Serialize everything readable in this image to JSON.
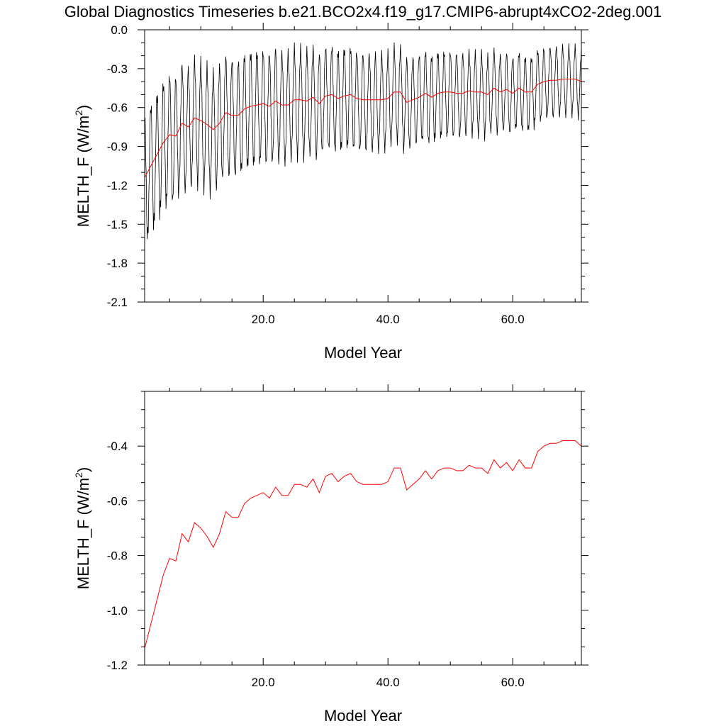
{
  "title": "Global Diagnostics Timeseries b.e21.BCO2x4.f19_g17.CMIP6-abrupt4xCO2-2deg.001",
  "colors": {
    "monthly": "#000000",
    "annual": "#ff0000",
    "axes": "#000000"
  },
  "chart_data": [
    {
      "type": "line",
      "panel": "top",
      "xlabel": "Model Year",
      "ylabel_main": "MELTH_F (W/m",
      "ylabel_sup": "2",
      "ylabel_close": ")",
      "xlim": [
        1,
        71
      ],
      "ylim": [
        -2.1,
        0.0
      ],
      "xticks": [
        20,
        40,
        60
      ],
      "xtick_labels": [
        "20.0",
        "40.0",
        "60.0"
      ],
      "yticks": [
        0.0,
        -0.3,
        -0.6,
        -0.9,
        -1.2,
        -1.5,
        -1.8,
        -2.1
      ],
      "ytick_labels": [
        "0.0",
        "-0.3",
        "-0.6",
        "-0.9",
        "-1.2",
        "-1.5",
        "-1.8",
        "-2.1"
      ],
      "series": [
        {
          "name": "monthly",
          "color": "#000000",
          "generated": "seasonal cycle: annual mean + amplitude, peak near mid-year",
          "amplitude_start": 0.55,
          "amplitude_end": 0.28
        },
        {
          "name": "annual mean",
          "color": "#ff0000",
          "ref": "annual_mean"
        }
      ]
    },
    {
      "type": "line",
      "panel": "bottom",
      "xlabel": "Model Year",
      "ylabel_main": "MELTH_F (W/m",
      "ylabel_sup": "2",
      "ylabel_close": ")",
      "xlim": [
        1,
        71
      ],
      "ylim": [
        -1.2,
        -0.2
      ],
      "xticks": [
        20,
        40,
        60
      ],
      "xtick_labels": [
        "20.0",
        "40.0",
        "60.0"
      ],
      "yticks": [
        -0.4,
        -0.6,
        -0.8,
        -1.0,
        -1.2
      ],
      "ytick_labels": [
        "-0.4",
        "-0.6",
        "-0.8",
        "-1.0",
        "-1.2"
      ],
      "series": [
        {
          "name": "annual mean",
          "color": "#ff0000",
          "ref": "annual_mean"
        }
      ]
    }
  ],
  "annual_mean": {
    "x": [
      1,
      2,
      3,
      4,
      5,
      6,
      7,
      8,
      9,
      10,
      11,
      12,
      13,
      14,
      15,
      16,
      17,
      18,
      19,
      20,
      21,
      22,
      23,
      24,
      25,
      26,
      27,
      28,
      29,
      30,
      31,
      32,
      33,
      34,
      35,
      36,
      37,
      38,
      39,
      40,
      41,
      42,
      43,
      44,
      45,
      46,
      47,
      48,
      49,
      50,
      51,
      52,
      53,
      54,
      55,
      56,
      57,
      58,
      59,
      60,
      61,
      62,
      63,
      64,
      65,
      66,
      67,
      68,
      69,
      70,
      71
    ],
    "y": [
      -1.14,
      -1.05,
      -0.96,
      -0.87,
      -0.81,
      -0.82,
      -0.72,
      -0.75,
      -0.68,
      -0.7,
      -0.73,
      -0.77,
      -0.72,
      -0.64,
      -0.66,
      -0.66,
      -0.61,
      -0.59,
      -0.58,
      -0.57,
      -0.59,
      -0.55,
      -0.58,
      -0.58,
      -0.54,
      -0.54,
      -0.55,
      -0.52,
      -0.57,
      -0.51,
      -0.5,
      -0.53,
      -0.51,
      -0.5,
      -0.53,
      -0.54,
      -0.54,
      -0.54,
      -0.54,
      -0.53,
      -0.48,
      -0.48,
      -0.56,
      -0.54,
      -0.52,
      -0.49,
      -0.52,
      -0.49,
      -0.48,
      -0.48,
      -0.49,
      -0.49,
      -0.47,
      -0.48,
      -0.48,
      -0.5,
      -0.45,
      -0.48,
      -0.46,
      -0.49,
      -0.45,
      -0.48,
      -0.48,
      -0.42,
      -0.4,
      -0.39,
      -0.39,
      -0.38,
      -0.38,
      -0.38,
      -0.4
    ]
  }
}
